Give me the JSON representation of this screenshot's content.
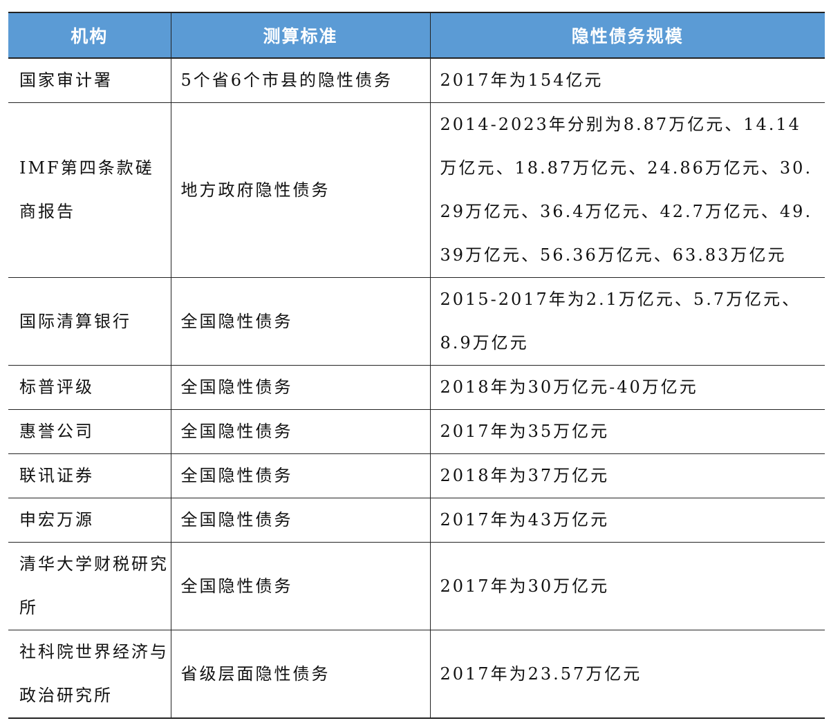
{
  "header": {
    "col1": "机构",
    "col2": "测算标准",
    "col3": "隐性债务规模"
  },
  "header_color": "#5b9bd5",
  "rows": [
    {
      "org": "国家审计署",
      "standard": "5个省6个市县的隐性债务",
      "scale": "2017年为154亿元"
    },
    {
      "org": "IMF第四条款磋商报告",
      "standard": "地方政府隐性债务",
      "scale": "2014-2023年分别为8.87万亿元、14.14万亿元、18.87万亿元、24.86万亿元、30.29万亿元、36.4万亿元、42.7万亿元、49.39万亿元、56.36万亿元、63.83万亿元"
    },
    {
      "org": "国际清算银行",
      "standard": "全国隐性债务",
      "scale": "2015-2017年为2.1万亿元、5.7万亿元、8.9万亿元"
    },
    {
      "org": "标普评级",
      "standard": "全国隐性债务",
      "scale": "2018年为30万亿元-40万亿元"
    },
    {
      "org": "惠誉公司",
      "standard": "全国隐性债务",
      "scale": "2017年为35万亿元"
    },
    {
      "org": "联讯证券",
      "standard": "全国隐性债务",
      "scale": "2018年为37万亿元"
    },
    {
      "org": "申宏万源",
      "standard": "全国隐性债务",
      "scale": "2017年为43万亿元"
    },
    {
      "org": "清华大学财税研究所",
      "standard": "全国隐性债务",
      "scale": "2017年为30万亿元"
    },
    {
      "org": "社科院世界经济与政治研究所",
      "standard": "省级层面隐性债务",
      "scale": "2017年为23.57万亿元"
    }
  ]
}
